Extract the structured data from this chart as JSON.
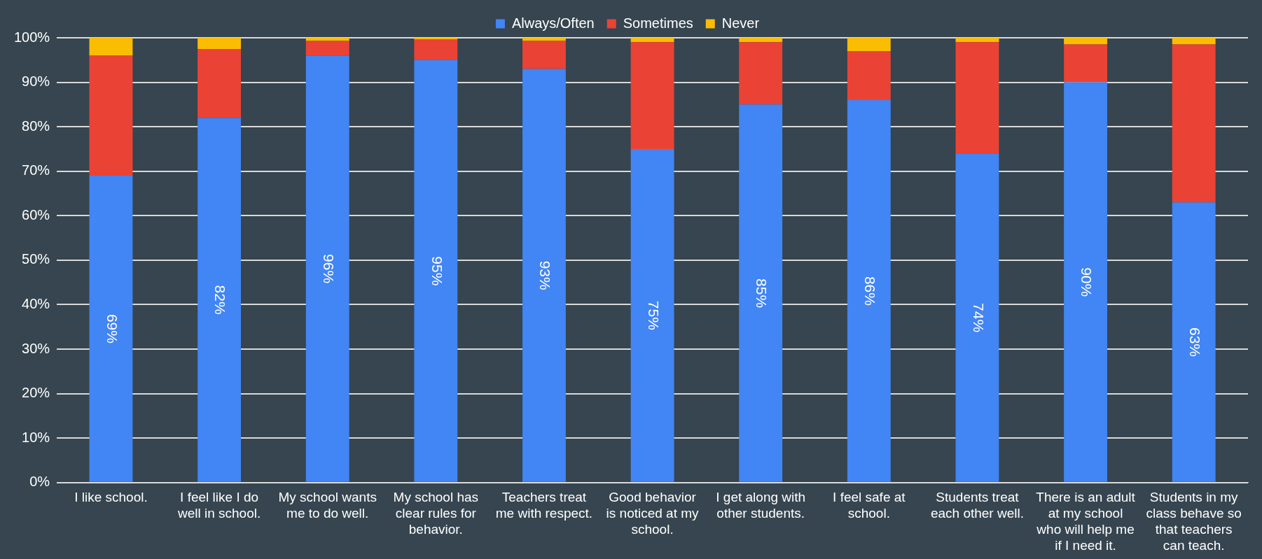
{
  "chart_data": {
    "type": "bar",
    "stacked": true,
    "legend": "top",
    "grid": "y",
    "categories": [
      "I like school.",
      "I feel like I do well in school.",
      "My school wants me to do well.",
      "My school has clear rules for behavior.",
      "Teachers treat me with respect.",
      "Good behavior is noticed at my school.",
      "I get along with other students.",
      "I feel safe at school.",
      "Students treat each other well.",
      "There is an adult at my school who will help me if I need it.",
      "Students in my class behave so that teachers can teach."
    ],
    "series": [
      {
        "name": "Always/Often",
        "color": "#4285f4",
        "values": [
          69,
          82,
          96,
          95,
          93,
          75,
          85,
          86,
          74,
          90,
          63
        ],
        "value_labels": [
          "69%",
          "82%",
          "96%",
          "95%",
          "93%",
          "75%",
          "85%",
          "86%",
          "74%",
          "90%",
          "63%"
        ]
      },
      {
        "name": "Sometimes",
        "color": "#ea4335",
        "values": [
          27,
          15.5,
          3.3,
          4.6,
          6.3,
          24,
          14,
          11,
          25,
          8.5,
          35.5
        ]
      },
      {
        "name": "Never",
        "color": "#fbbc04",
        "values": [
          4,
          2.5,
          0.7,
          0.4,
          0.7,
          1,
          1,
          3,
          1,
          1.5,
          1.5
        ]
      }
    ],
    "ylim": [
      0,
      100
    ],
    "yticks": [
      {
        "value": 0,
        "label": "0%"
      },
      {
        "value": 10,
        "label": "10%"
      },
      {
        "value": 20,
        "label": "20%"
      },
      {
        "value": 30,
        "label": "30%"
      },
      {
        "value": 40,
        "label": "40%"
      },
      {
        "value": 50,
        "label": "50%"
      },
      {
        "value": 60,
        "label": "60%"
      },
      {
        "value": 70,
        "label": "70%"
      },
      {
        "value": 80,
        "label": "80%"
      },
      {
        "value": 90,
        "label": "90%"
      },
      {
        "value": 100,
        "label": "100%"
      }
    ]
  }
}
